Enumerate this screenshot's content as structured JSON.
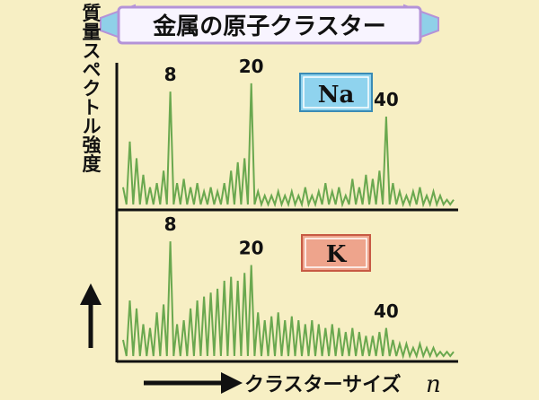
{
  "title": "金属の原子クラスター",
  "ylabel": "質量スペクトル強度",
  "xlabel": "クラスターサイズ",
  "xlabel_var": "n",
  "colors": {
    "background": "#f7efc4",
    "line": "#6aa84f",
    "axis": "#111111",
    "banner_fill": "#f8f4ff",
    "banner_edge": "#b493d8",
    "banner_arrow": "#8fd0e8",
    "na_badge": "#8fd3ee",
    "k_badge": "#eea48c"
  },
  "chart_data": [
    {
      "type": "line",
      "element": "Na",
      "annotations": [
        "8",
        "20",
        "40"
      ],
      "annotated_x": [
        8,
        20,
        40
      ],
      "x": [
        1,
        2,
        3,
        4,
        5,
        6,
        7,
        8,
        9,
        10,
        11,
        12,
        13,
        14,
        15,
        16,
        17,
        18,
        19,
        20,
        21,
        22,
        23,
        24,
        25,
        26,
        27,
        28,
        29,
        30,
        31,
        32,
        33,
        34,
        35,
        36,
        37,
        38,
        39,
        40,
        41,
        42,
        43,
        44,
        45,
        46,
        47,
        48,
        49,
        50
      ],
      "values": [
        5,
        16,
        12,
        8,
        5,
        6,
        9,
        28,
        6,
        7,
        5,
        6,
        4,
        5,
        4,
        6,
        9,
        11,
        12,
        30,
        4,
        3,
        3,
        4,
        3,
        4,
        3,
        5,
        3,
        4,
        6,
        4,
        5,
        3,
        7,
        5,
        8,
        7,
        9,
        22,
        6,
        4,
        3,
        4,
        5,
        3,
        4,
        3,
        2,
        2
      ],
      "ylim": [
        0,
        33
      ]
    },
    {
      "type": "line",
      "element": "K",
      "annotations": [
        "8",
        "20",
        "40"
      ],
      "annotated_x": [
        8,
        20,
        40
      ],
      "x": [
        1,
        2,
        3,
        4,
        5,
        6,
        7,
        8,
        9,
        10,
        11,
        12,
        13,
        14,
        15,
        16,
        17,
        18,
        19,
        20,
        21,
        22,
        23,
        24,
        25,
        26,
        27,
        28,
        29,
        30,
        31,
        32,
        33,
        34,
        35,
        36,
        37,
        38,
        39,
        40,
        41,
        42,
        43,
        44,
        45,
        46,
        47,
        48,
        49,
        50
      ],
      "values": [
        5,
        15,
        13,
        9,
        8,
        12,
        14,
        30,
        9,
        10,
        13,
        15,
        16,
        17,
        18,
        20,
        21,
        20,
        22,
        24,
        12,
        10,
        11,
        12,
        10,
        11,
        10,
        9,
        10,
        9,
        8,
        9,
        8,
        7,
        8,
        7,
        6,
        6,
        7,
        8,
        5,
        4,
        4,
        3,
        4,
        3,
        3,
        2,
        2,
        2
      ],
      "ylim": [
        0,
        33
      ]
    }
  ]
}
